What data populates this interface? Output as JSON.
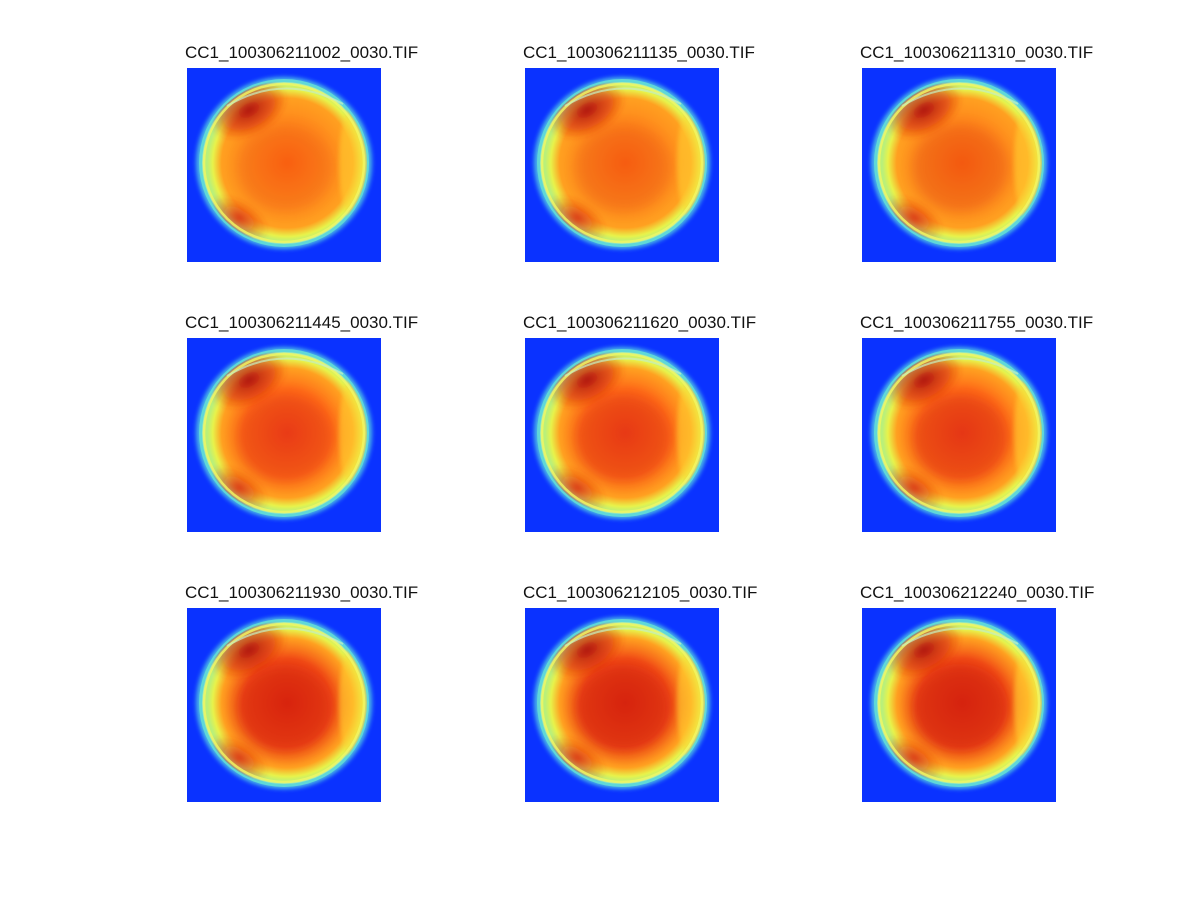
{
  "figure": {
    "background": "#ffffff",
    "panels": [
      {
        "title": "CC1_100306211002_0030.TIF",
        "tone": 0
      },
      {
        "title": "CC1_100306211135_0030.TIF",
        "tone": 1
      },
      {
        "title": "CC1_100306211310_0030.TIF",
        "tone": 2
      },
      {
        "title": "CC1_100306211445_0030.TIF",
        "tone": 3
      },
      {
        "title": "CC1_100306211620_0030.TIF",
        "tone": 4
      },
      {
        "title": "CC1_100306211755_0030.TIF",
        "tone": 5
      },
      {
        "title": "CC1_100306211930_0030.TIF",
        "tone": 6
      },
      {
        "title": "CC1_100306212105_0030.TIF",
        "tone": 7
      },
      {
        "title": "CC1_100306212240_0030.TIF",
        "tone": 8
      }
    ],
    "colormap": "jet",
    "colors": {
      "background_blue": "#0a32ff",
      "ring_cyan": "#5fd8d8",
      "ring_yellow": "#e8f24a",
      "disk_orange": "#ff8a1c",
      "disk_red": "#e8300e",
      "dark_red": "#a80d0d"
    }
  }
}
